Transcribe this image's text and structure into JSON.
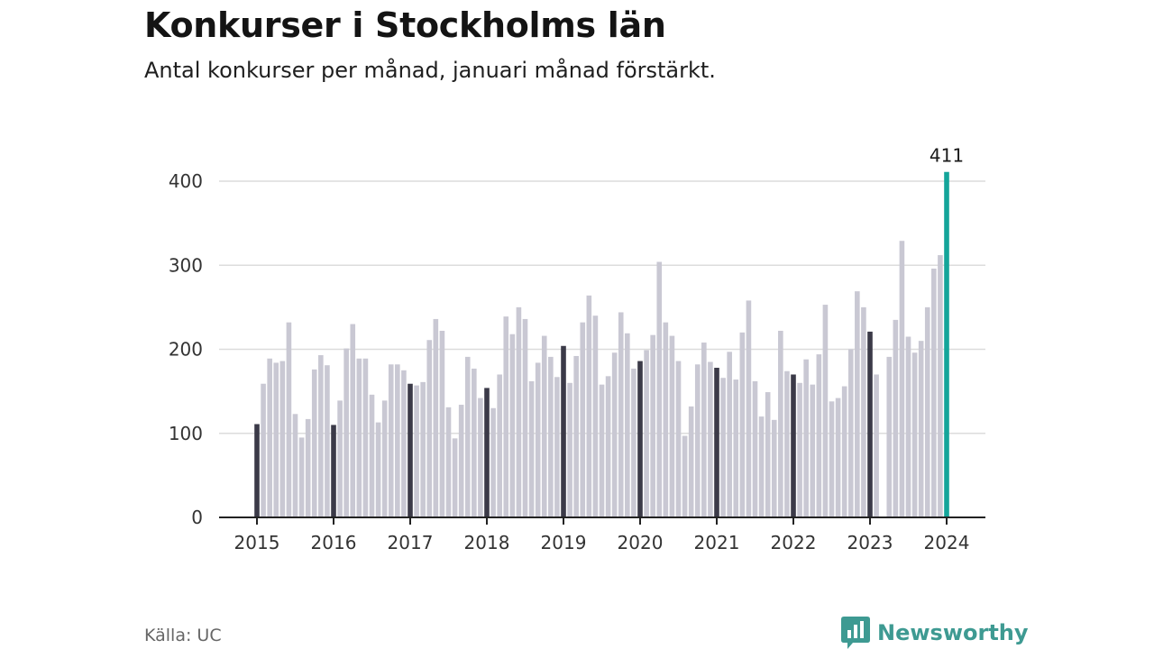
{
  "title": "Konkurser i Stockholms län",
  "subtitle": "Antal konkurser per månad, januari månad förstärkt.",
  "source": "Källa: UC",
  "brand": {
    "name": "Newsworthy",
    "icon": "newsworthy-chart-logo-icon"
  },
  "colors": {
    "regular": "#c9c8d3",
    "january": "#3b3a48",
    "latest": "#14a59a",
    "grid": "#dcdcdc",
    "axis": "#222222"
  },
  "chart_data": {
    "type": "bar",
    "title": "Konkurser i Stockholms län",
    "subtitle": "Antal konkurser per månad, januari månad förstärkt.",
    "xlabel": "",
    "ylabel": "",
    "ylim": [
      0,
      430
    ],
    "yticks": [
      0,
      100,
      200,
      300,
      400
    ],
    "xticks": [
      "2015",
      "2016",
      "2017",
      "2018",
      "2019",
      "2020",
      "2021",
      "2022",
      "2023",
      "2024"
    ],
    "grid": true,
    "highlight": "January of each year darkened; latest month highlighted",
    "annotation": {
      "label": "411",
      "category": "2024-01"
    },
    "series": [
      {
        "year": "2015",
        "values": [
          111,
          159,
          189,
          184,
          186,
          232,
          123,
          95,
          117,
          176,
          193,
          181
        ]
      },
      {
        "year": "2016",
        "values": [
          110,
          139,
          201,
          230,
          189,
          189,
          146,
          113,
          139,
          182,
          182,
          175
        ]
      },
      {
        "year": "2017",
        "values": [
          159,
          157,
          161,
          211,
          236,
          222,
          131,
          94,
          134,
          191,
          177,
          142
        ]
      },
      {
        "year": "2018",
        "values": [
          154,
          130,
          170,
          239,
          218,
          250,
          236,
          162,
          184,
          216,
          191,
          167
        ]
      },
      {
        "year": "2019",
        "values": [
          204,
          160,
          192,
          232,
          264,
          240,
          158,
          168,
          196,
          244,
          219,
          177
        ]
      },
      {
        "year": "2020",
        "values": [
          186,
          199,
          217,
          304,
          232,
          216,
          186,
          97,
          132,
          182,
          208,
          185
        ]
      },
      {
        "year": "2021",
        "values": [
          178,
          166,
          197,
          164,
          220,
          258,
          162,
          120,
          149,
          116,
          222,
          174
        ]
      },
      {
        "year": "2022",
        "values": [
          170,
          160,
          188,
          158,
          194,
          253,
          138,
          142,
          156,
          200,
          269,
          250
        ]
      },
      {
        "year": "2023",
        "values": [
          221,
          170,
          0,
          191,
          235,
          329,
          215,
          196,
          210,
          250,
          296,
          312
        ]
      },
      {
        "year": "2024",
        "values": [
          411
        ]
      }
    ]
  }
}
